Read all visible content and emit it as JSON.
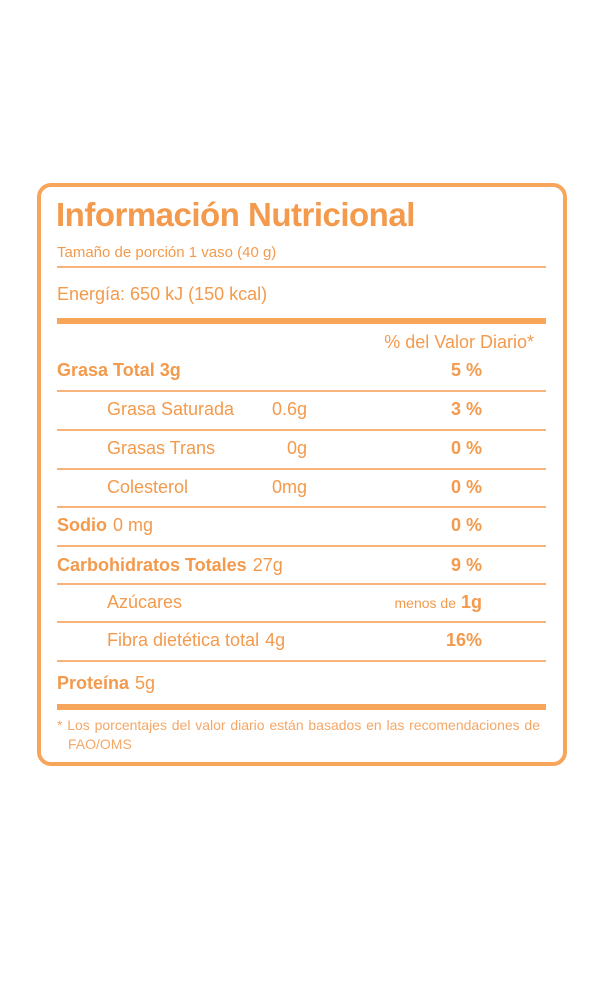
{
  "header": {
    "title": "Información Nutricional",
    "serving": "Tamaño de porción 1 vaso (40 g)",
    "energy": "Energía: 650 kJ (150 kcal)",
    "dv_heading": "% del Valor Diario*"
  },
  "table": {
    "rows": [
      {
        "name": "Grasa Total 3g",
        "daily_value": "5 %"
      },
      {
        "name": "Grasa Saturada",
        "amount": "0.6g",
        "daily_value": "3 %"
      },
      {
        "name": "Grasas Trans",
        "amount": "0g",
        "daily_value": "0 %"
      },
      {
        "name": "Colesterol",
        "amount": "0mg",
        "daily_value": "0 %"
      },
      {
        "name": "Sodio",
        "amount": "0 mg",
        "daily_value": "0 %"
      },
      {
        "name": "Carbohidratos Totales",
        "amount": "27g",
        "daily_value": "9 %"
      },
      {
        "name": "Azúcares",
        "daily_value_prefix": "menos de",
        "daily_value": "1g"
      },
      {
        "name": "Fibra dietética total",
        "amount": "4g",
        "daily_value": "16%"
      },
      {
        "name": "Proteína",
        "amount": "5g"
      }
    ]
  },
  "footnote": "* Los porcentajes del valor diario están basados en las recomendaciones de FAO/OMS"
}
